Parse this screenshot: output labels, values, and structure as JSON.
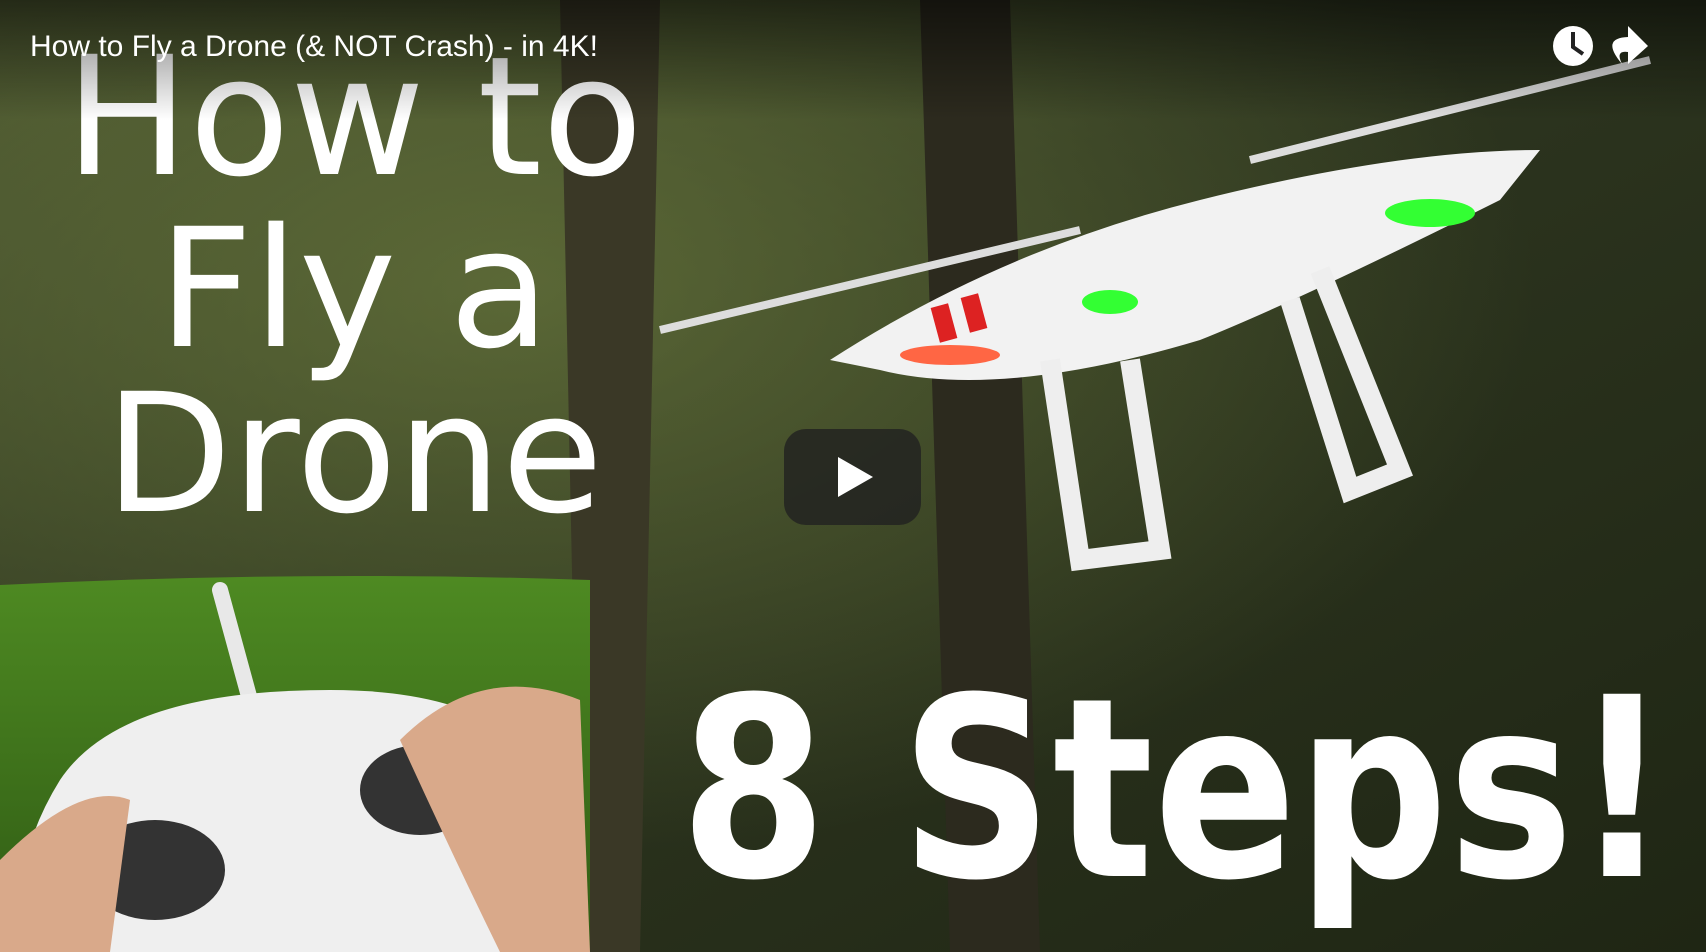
{
  "header": {
    "title": "How to Fly a Drone (& NOT Crash) - in 4K!"
  },
  "thumbnail": {
    "lines": [
      "How to",
      "Fly a",
      "Drone"
    ],
    "caption": "8 Steps!"
  }
}
